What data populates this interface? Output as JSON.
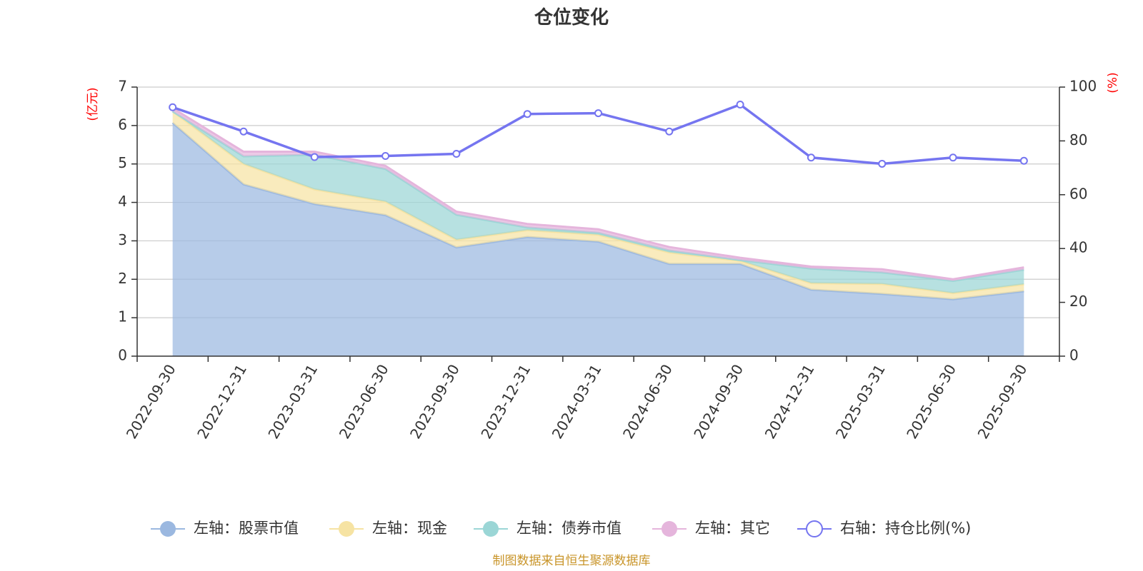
{
  "chart_data": {
    "type": "area",
    "title": "仓位变化",
    "x": [
      "2022-09-30",
      "2022-12-31",
      "2023-03-31",
      "2023-06-30",
      "2023-09-30",
      "2023-12-31",
      "2024-03-31",
      "2024-06-30",
      "2024-09-30",
      "2024-12-31",
      "2025-03-31",
      "2025-06-30",
      "2025-09-30"
    ],
    "left_axis": {
      "unit": "(亿元)",
      "ylim": [
        0,
        7
      ],
      "ticks": [
        "0",
        "1",
        "2",
        "3",
        "4",
        "5",
        "6",
        "7"
      ]
    },
    "right_axis": {
      "unit": "(%)",
      "ylim": [
        0,
        100
      ],
      "ticks": [
        "0",
        "20",
        "40",
        "60",
        "80",
        "100"
      ]
    },
    "stacked": true,
    "grid": true,
    "legend_position": "bottom",
    "series": [
      {
        "name": "左轴：股票市值",
        "axis": "left",
        "type": "area",
        "color": "#9bb8e0",
        "values": [
          6.07,
          4.47,
          3.96,
          3.67,
          2.83,
          3.1,
          2.98,
          2.4,
          2.4,
          1.73,
          1.62,
          1.48,
          1.69
        ]
      },
      {
        "name": "左轴：现金",
        "axis": "left",
        "type": "area",
        "color": "#f6e3a3",
        "values": [
          0.3,
          0.53,
          0.38,
          0.35,
          0.2,
          0.18,
          0.18,
          0.3,
          0.08,
          0.17,
          0.26,
          0.16,
          0.18
        ]
      },
      {
        "name": "左轴：债券市值",
        "axis": "left",
        "type": "area",
        "color": "#9bd6d6",
        "values": [
          0.0,
          0.2,
          0.9,
          0.85,
          0.65,
          0.07,
          0.05,
          0.05,
          0.02,
          0.38,
          0.3,
          0.32,
          0.38
        ]
      },
      {
        "name": "左轴：其它",
        "axis": "left",
        "type": "area",
        "color": "#e5b5dc",
        "values": [
          0.08,
          0.12,
          0.08,
          0.08,
          0.08,
          0.09,
          0.09,
          0.09,
          0.06,
          0.05,
          0.08,
          0.04,
          0.06
        ]
      },
      {
        "name": "右轴：持仓比例(%)",
        "axis": "right",
        "type": "line",
        "color": "#7575f0",
        "values": [
          92.5,
          83.5,
          74.0,
          74.4,
          75.2,
          90.0,
          90.3,
          83.5,
          93.5,
          73.8,
          71.5,
          73.8,
          72.6
        ]
      }
    ]
  },
  "footer": {
    "source": "制图数据来自恒生聚源数据库"
  }
}
